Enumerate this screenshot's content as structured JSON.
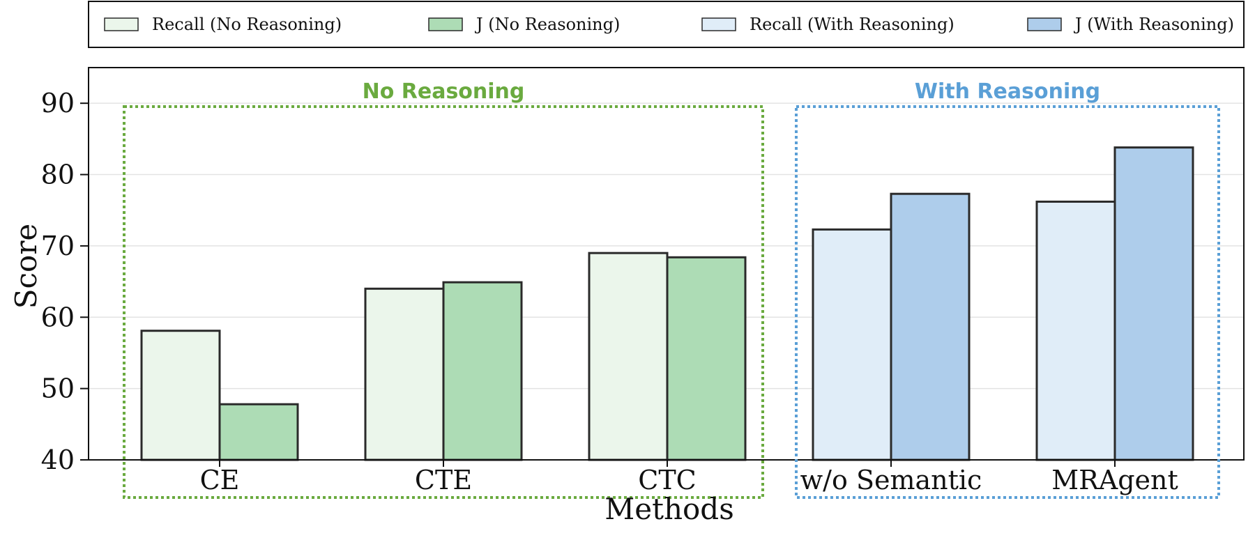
{
  "chart_data": {
    "type": "bar",
    "categories": [
      "CE",
      "CTE",
      "CTC",
      "w/o Semantic",
      "MRAgent"
    ],
    "series": [
      {
        "name": "Recall (No Reasoning)",
        "color": "#ebf6eb",
        "values": [
          58.1,
          64.0,
          69.0,
          null,
          null
        ]
      },
      {
        "name": "J (No Reasoning)",
        "color": "#addcb5",
        "values": [
          47.8,
          64.9,
          68.4,
          null,
          null
        ]
      },
      {
        "name": "Recall (With Reasoning)",
        "color": "#e0edf8",
        "values": [
          null,
          null,
          null,
          72.3,
          76.2
        ]
      },
      {
        "name": "J (With Reasoning)",
        "color": "#aecdeb",
        "values": [
          null,
          null,
          null,
          77.3,
          83.8
        ]
      }
    ],
    "groups": [
      {
        "label": "No Reasoning",
        "color": "#6aaa3f",
        "categories": [
          "CE",
          "CTE",
          "CTC"
        ]
      },
      {
        "label": "With Reasoning",
        "color": "#5a9fd6",
        "categories": [
          "w/o Semantic",
          "MRAgent"
        ]
      }
    ],
    "xlabel": "Methods",
    "ylabel": "Score",
    "ylim": [
      40,
      95
    ],
    "yticks": [
      40,
      50,
      60,
      70,
      80,
      90
    ],
    "grid": true,
    "legend_position": "top"
  }
}
